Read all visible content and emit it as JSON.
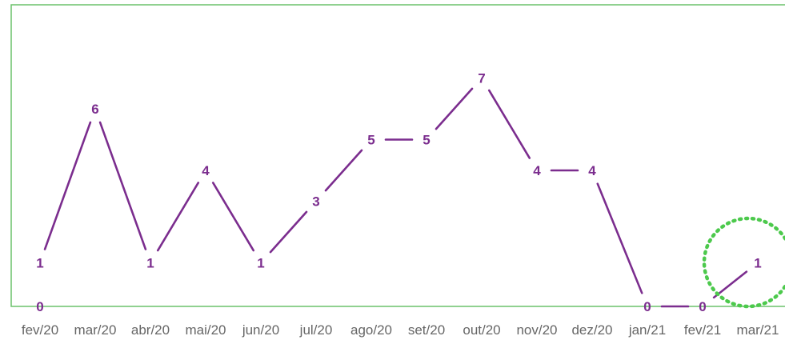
{
  "chart_data": {
    "type": "line",
    "categories": [
      "fev/20",
      "mar/20",
      "abr/20",
      "mai/20",
      "jun/20",
      "jul/20",
      "ago/20",
      "set/20",
      "out/20",
      "nov/20",
      "dez/20",
      "jan/21",
      "fev/21",
      "mar/21"
    ],
    "values": [
      1,
      6,
      1,
      4,
      1,
      3,
      5,
      5,
      7,
      4,
      4,
      0,
      0,
      1
    ],
    "baseline_label": "0",
    "ylim": [
      0,
      8
    ],
    "grid": false,
    "colors": {
      "line": "#7b2d8e",
      "label": "#7b2d8e",
      "frame": "#6cc26c",
      "highlight": "#4cc94c",
      "tick_text": "#666666"
    },
    "highlight_category": "mar/21"
  }
}
